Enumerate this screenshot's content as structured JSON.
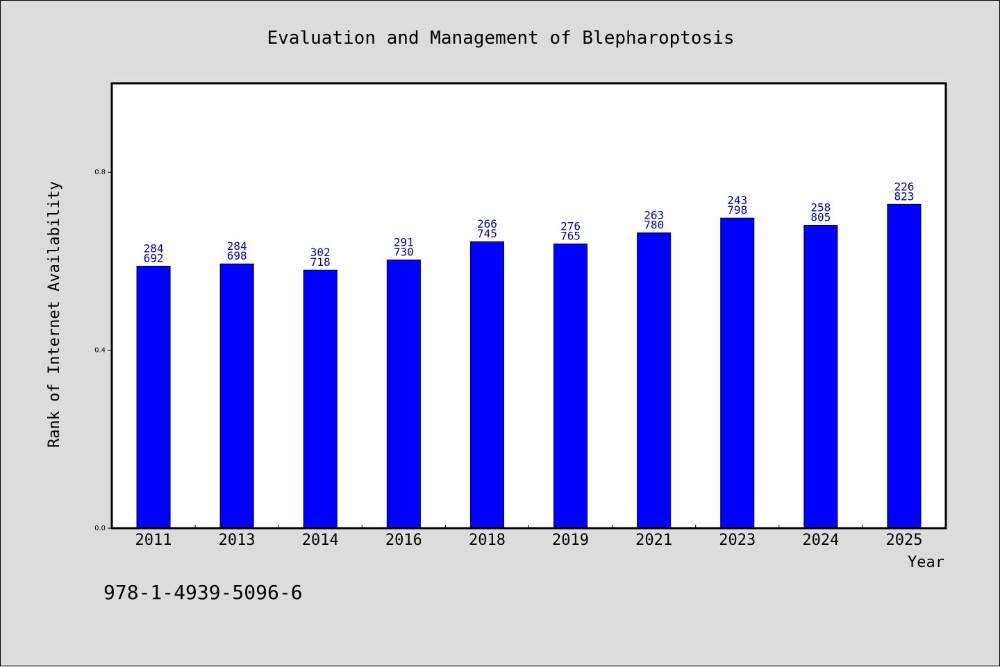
{
  "colors": {
    "background": "#dcdcdc",
    "plot_bg": "#ffffff",
    "bar": "#0000ff",
    "label": "#0000cc"
  },
  "footer_code": "978-1-4939-5096-6",
  "chart_data": {
    "type": "bar",
    "title": "Evaluation and Management of Blepharoptosis",
    "xlabel": "Year",
    "ylabel": "Rank of Internet Availability",
    "ylim": [
      0,
      1.0
    ],
    "yticks": [
      "0.0",
      "0.4",
      "0.8"
    ],
    "categories": [
      "2011",
      "2013",
      "2014",
      "2016",
      "2018",
      "2019",
      "2021",
      "2023",
      "2024",
      "2025"
    ],
    "values": [
      0.589,
      0.594,
      0.58,
      0.603,
      0.644,
      0.639,
      0.664,
      0.697,
      0.681,
      0.728
    ],
    "label_top": [
      "284",
      "284",
      "302",
      "291",
      "266",
      "276",
      "263",
      "243",
      "258",
      "226"
    ],
    "label_bottom": [
      "692",
      "698",
      "718",
      "730",
      "745",
      "765",
      "780",
      "798",
      "805",
      "823"
    ],
    "grid": false,
    "legend": "none"
  }
}
